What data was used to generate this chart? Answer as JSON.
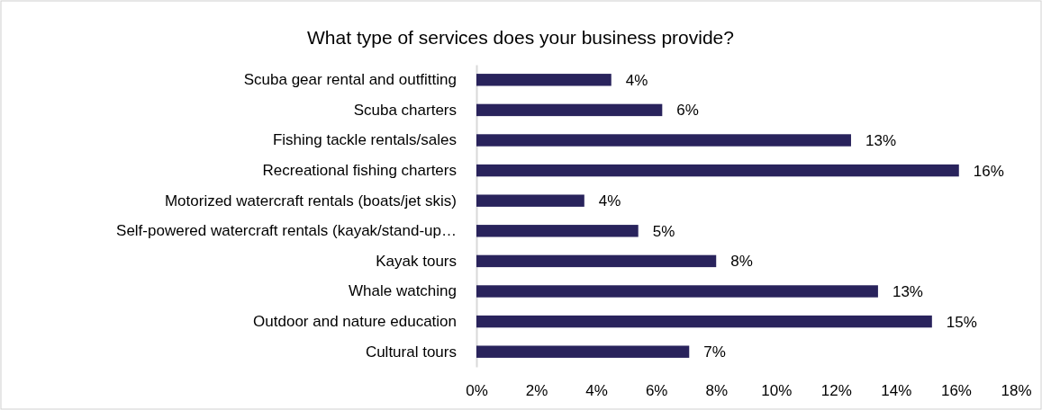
{
  "chart_data": {
    "type": "bar",
    "orientation": "horizontal",
    "title": "What type of services does your business provide?",
    "categories": [
      "Scuba gear rental and outfitting",
      "Scuba charters",
      "Fishing tackle rentals/sales",
      "Recreational fishing charters",
      "Motorized watercraft rentals (boats/jet skis)",
      "Self-powered watercraft rentals (kayak/stand-up…",
      "Kayak tours",
      "Whale watching",
      "Outdoor and nature education",
      "Cultural tours"
    ],
    "values": [
      4.5,
      6.2,
      12.5,
      16.1,
      3.6,
      5.4,
      8.0,
      13.4,
      15.2,
      7.1
    ],
    "value_labels": [
      "4%",
      "6%",
      "13%",
      "16%",
      "4%",
      "5%",
      "8%",
      "13%",
      "15%",
      "7%"
    ],
    "color": "#29235c",
    "xlim": [
      0,
      18
    ],
    "xticks": [
      {
        "value": 0,
        "label": "0%"
      },
      {
        "value": 2,
        "label": "2%"
      },
      {
        "value": 4,
        "label": "4%"
      },
      {
        "value": 6,
        "label": "6%"
      },
      {
        "value": 8,
        "label": "8%"
      },
      {
        "value": 10,
        "label": "10%"
      },
      {
        "value": 12,
        "label": "12%"
      },
      {
        "value": 14,
        "label": "14%"
      },
      {
        "value": 16,
        "label": "16%"
      },
      {
        "value": 18,
        "label": "18%"
      }
    ],
    "grid": false
  }
}
